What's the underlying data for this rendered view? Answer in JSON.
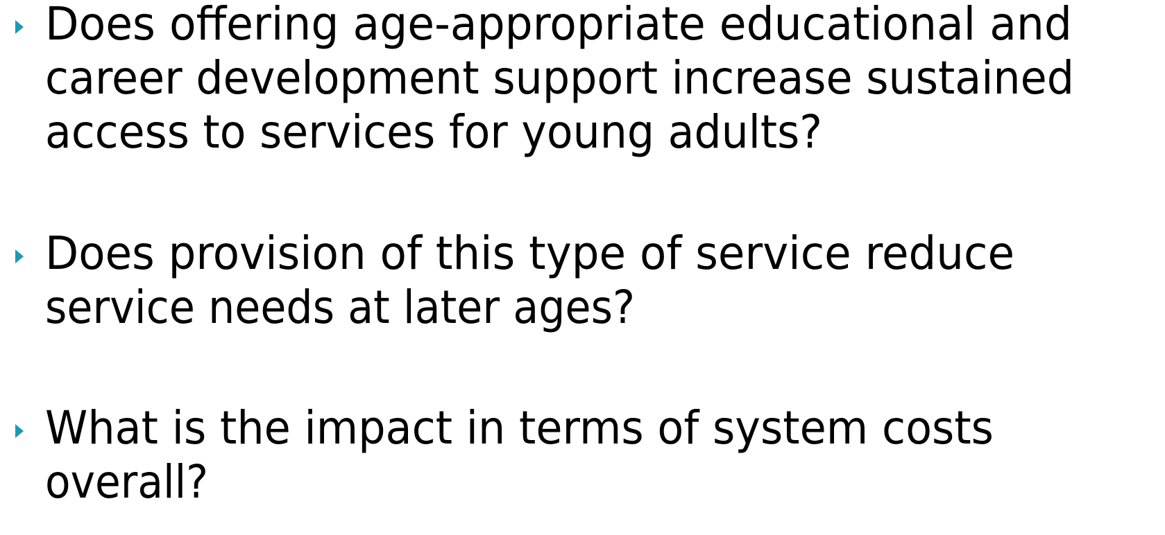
{
  "bullets": [
    {
      "lines": [
        "Does offering age-appropriate educational and",
        "career development support increase sustained",
        "access to services for young adults?"
      ]
    },
    {
      "lines": [
        "Does provision of this type of service reduce",
        "service needs at later ages?"
      ]
    },
    {
      "lines": [
        "What is the impact in terms of system costs",
        "overall?"
      ]
    }
  ]
}
